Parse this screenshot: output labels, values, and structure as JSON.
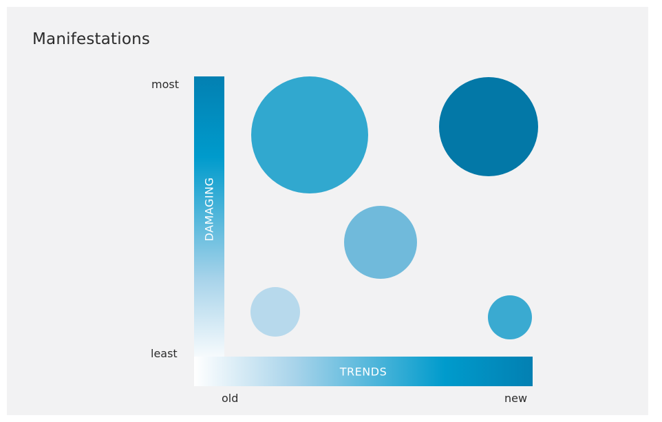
{
  "title": "Manifestations",
  "y_axis": {
    "label": "DAMAGING",
    "high": "most",
    "low": "least"
  },
  "x_axis": {
    "label": "TRENDS",
    "low": "old",
    "high": "new"
  },
  "colors": {
    "panel_background": "#f2f2f3",
    "gradient_dark": "#0380b2",
    "gradient_mid": "#009bcc",
    "gradient_light": "#a7d3ea"
  },
  "bubbles": [
    {
      "id": "bubble-large-left",
      "color": "#31a8cf"
    },
    {
      "id": "bubble-large-right",
      "color": "#0378a7"
    },
    {
      "id": "bubble-medium-center",
      "color": "#70badb"
    },
    {
      "id": "bubble-small-left",
      "color": "#b7d9ec"
    },
    {
      "id": "bubble-small-right",
      "color": "#3aaad1"
    }
  ]
}
